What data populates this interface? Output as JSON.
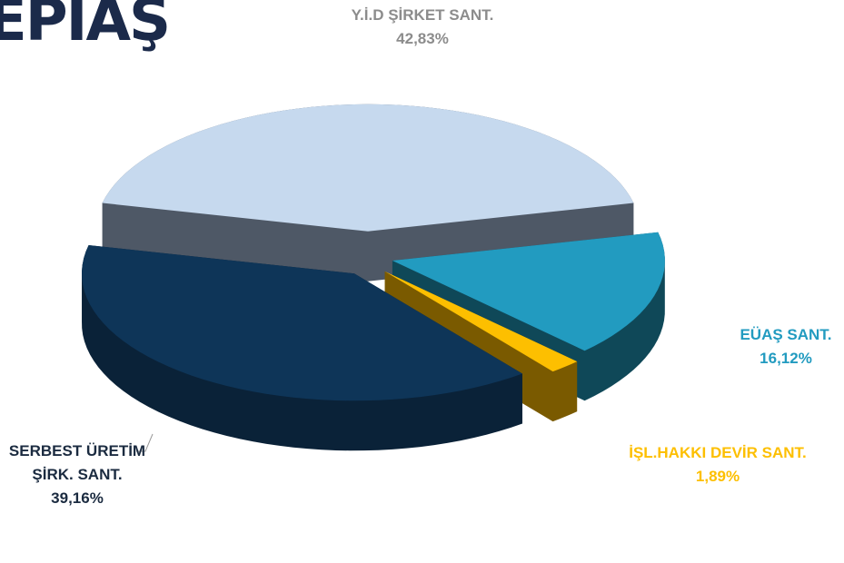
{
  "logo": "EPIAŞ",
  "chart_data": {
    "type": "pie3d",
    "categories": [
      "Y.İ.D  ŞİRKET SANT.",
      "EÜAŞ SANT.",
      "İŞL.HAKKI DEVİR SANT.",
      "SERBEST ÜRETİM ŞİRK. SANT."
    ],
    "values": [
      42.83,
      16.12,
      1.89,
      39.16
    ],
    "value_labels": [
      "42,83%",
      "16,12%",
      "1,89%",
      "39,16%"
    ],
    "colors": [
      "#c6d9ee",
      "#229bc0",
      "#fdbf00",
      "#0e3558"
    ],
    "side_colors": [
      "#4e5866",
      "#0f4858",
      "#7a5a00",
      "#0a2238"
    ],
    "label_colors": [
      "#8c8c8c",
      "#229bc0",
      "#fdbf00",
      "#1b2b40"
    ]
  }
}
